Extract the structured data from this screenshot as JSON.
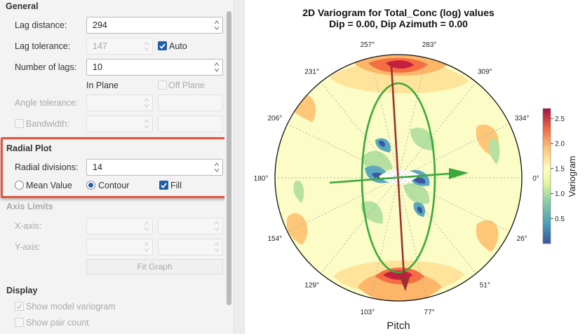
{
  "general": {
    "heading": "General",
    "lag_distance": {
      "label": "Lag distance:",
      "value": "294"
    },
    "lag_tolerance": {
      "label": "Lag tolerance:",
      "value": "147",
      "auto_label": "Auto"
    },
    "number_of_lags": {
      "label": "Number of lags:",
      "value": "10"
    },
    "in_plane": "In Plane",
    "off_plane": "Off Plane",
    "angle_tolerance": {
      "label": "Angle tolerance:"
    },
    "bandwidth": {
      "label": "Bandwidth:"
    }
  },
  "radial_plot": {
    "heading": "Radial Plot",
    "radial_divisions": {
      "label": "Radial divisions:",
      "value": "14"
    },
    "mean_value": "Mean Value",
    "contour": "Contour",
    "fill": "Fill"
  },
  "axis_limits": {
    "heading": "Axis Limits",
    "x_axis": "X-axis:",
    "y_axis": "Y-axis:",
    "fit_graph": "Fit Graph"
  },
  "display": {
    "heading": "Display",
    "show_model": "Show model variogram",
    "show_pair_count": "Show pair count"
  },
  "colors": {
    "accent": "#1f5fa8",
    "highlight": "#e8543a"
  },
  "chart_data": {
    "type": "heatmap",
    "title": "2D Variogram for Total_Conc (log) values",
    "subtitle": "Dip = 0.00, Dip Azimuth = 0.00",
    "xlabel": "Pitch",
    "colorbar_label": "Variogram",
    "colorbar_ticks": [
      0.5,
      1.0,
      1.5,
      2.0,
      2.5
    ],
    "colorbar_range": [
      0.0,
      2.7
    ],
    "angle_labels": [
      {
        "label": "0°",
        "deg": 0
      },
      {
        "label": "26°",
        "deg": 26
      },
      {
        "label": "51°",
        "deg": 51
      },
      {
        "label": "77°",
        "deg": 77
      },
      {
        "label": "103°",
        "deg": 103
      },
      {
        "label": "129°",
        "deg": 129
      },
      {
        "label": "154°",
        "deg": 154
      },
      {
        "label": "180°",
        "deg": 180
      },
      {
        "label": "206°",
        "deg": 206
      },
      {
        "label": "231°",
        "deg": 231
      },
      {
        "label": "257°",
        "deg": 257
      },
      {
        "label": "283°",
        "deg": 283
      },
      {
        "label": "309°",
        "deg": 309
      },
      {
        "label": "334°",
        "deg": 334
      }
    ],
    "ellipse_color": "#3aa83a",
    "major_axis_color": "#a03030",
    "minor_axis_color": "#3aa83a"
  }
}
